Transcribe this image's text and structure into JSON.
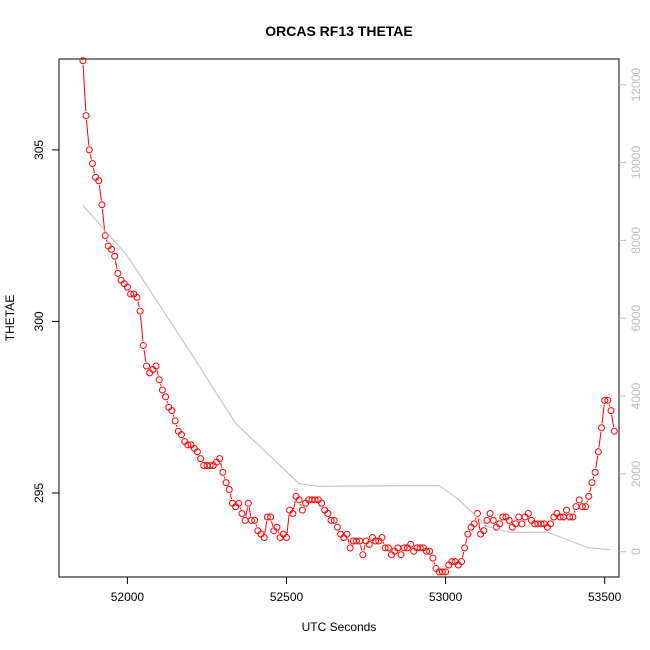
{
  "chart_data": {
    "type": "line",
    "title": "ORCAS RF13 THETAE",
    "xlabel": "UTC Seconds",
    "ylabel": "THETAE",
    "xlim": [
      51785,
      53545
    ],
    "ylim": [
      292.55,
      307.65
    ],
    "x_ticks": [
      52000,
      52500,
      53000,
      53500
    ],
    "y_ticks": [
      295,
      300,
      305
    ],
    "secondary_ylim": [
      -650,
      12660
    ],
    "secondary_ticks": [
      0,
      2000,
      4000,
      6000,
      8000,
      10000,
      12000
    ],
    "grid": false,
    "series": [
      {
        "color": "#ff0000",
        "style": "points-and-lines",
        "points": [
          [
            51860,
            307.6
          ],
          [
            51870,
            306.0
          ],
          [
            51880,
            305.0
          ],
          [
            51890,
            304.6
          ],
          [
            51900,
            304.2
          ],
          [
            51910,
            304.1
          ],
          [
            51920,
            303.4
          ],
          [
            51930,
            302.5
          ],
          [
            51940,
            302.2
          ],
          [
            51950,
            302.1
          ],
          [
            51960,
            301.9
          ],
          [
            51970,
            301.4
          ],
          [
            51980,
            301.2
          ],
          [
            51990,
            301.1
          ],
          [
            52000,
            301.0
          ],
          [
            52010,
            300.8
          ],
          [
            52020,
            300.8
          ],
          [
            52030,
            300.7
          ],
          [
            52040,
            300.3
          ],
          [
            52050,
            299.3
          ],
          [
            52060,
            298.7
          ],
          [
            52070,
            298.5
          ],
          [
            52080,
            298.6
          ],
          [
            52090,
            298.7
          ],
          [
            52100,
            298.3
          ],
          [
            52110,
            298.0
          ],
          [
            52120,
            297.8
          ],
          [
            52130,
            297.5
          ],
          [
            52140,
            297.4
          ],
          [
            52150,
            297.1
          ],
          [
            52160,
            296.8
          ],
          [
            52170,
            296.7
          ],
          [
            52180,
            296.5
          ],
          [
            52190,
            296.4
          ],
          [
            52200,
            296.4
          ],
          [
            52210,
            296.3
          ],
          [
            52220,
            296.2
          ],
          [
            52230,
            296.0
          ],
          [
            52240,
            295.8
          ],
          [
            52250,
            295.8
          ],
          [
            52260,
            295.8
          ],
          [
            52270,
            295.8
          ],
          [
            52280,
            295.9
          ],
          [
            52290,
            296.0
          ],
          [
            52300,
            295.6
          ],
          [
            52310,
            295.3
          ],
          [
            52320,
            295.1
          ],
          [
            52330,
            294.7
          ],
          [
            52340,
            294.6
          ],
          [
            52350,
            294.7
          ],
          [
            52360,
            294.4
          ],
          [
            52370,
            294.2
          ],
          [
            52380,
            294.7
          ],
          [
            52390,
            294.2
          ],
          [
            52400,
            294.2
          ],
          [
            52410,
            293.9
          ],
          [
            52420,
            293.8
          ],
          [
            52430,
            293.7
          ],
          [
            52440,
            294.3
          ],
          [
            52450,
            294.3
          ],
          [
            52460,
            293.9
          ],
          [
            52470,
            294.0
          ],
          [
            52480,
            293.7
          ],
          [
            52490,
            293.8
          ],
          [
            52500,
            293.7
          ],
          [
            52510,
            294.5
          ],
          [
            52520,
            294.4
          ],
          [
            52530,
            294.9
          ],
          [
            52540,
            294.8
          ],
          [
            52550,
            294.5
          ],
          [
            52560,
            294.7
          ],
          [
            52570,
            294.8
          ],
          [
            52580,
            294.8
          ],
          [
            52590,
            294.8
          ],
          [
            52600,
            294.8
          ],
          [
            52610,
            294.7
          ],
          [
            52620,
            294.5
          ],
          [
            52630,
            294.4
          ],
          [
            52640,
            294.2
          ],
          [
            52650,
            294.2
          ],
          [
            52660,
            294.0
          ],
          [
            52670,
            293.8
          ],
          [
            52680,
            293.7
          ],
          [
            52690,
            293.8
          ],
          [
            52700,
            293.4
          ],
          [
            52710,
            293.6
          ],
          [
            52720,
            293.6
          ],
          [
            52730,
            293.6
          ],
          [
            52740,
            293.2
          ],
          [
            52750,
            293.6
          ],
          [
            52760,
            293.5
          ],
          [
            52770,
            293.7
          ],
          [
            52780,
            293.6
          ],
          [
            52790,
            293.6
          ],
          [
            52800,
            293.7
          ],
          [
            52810,
            293.4
          ],
          [
            52820,
            293.4
          ],
          [
            52830,
            293.2
          ],
          [
            52840,
            293.3
          ],
          [
            52850,
            293.4
          ],
          [
            52860,
            293.2
          ],
          [
            52870,
            293.4
          ],
          [
            52880,
            293.4
          ],
          [
            52890,
            293.5
          ],
          [
            52900,
            293.3
          ],
          [
            52910,
            293.4
          ],
          [
            52920,
            293.4
          ],
          [
            52930,
            293.4
          ],
          [
            52940,
            293.3
          ],
          [
            52950,
            293.3
          ],
          [
            52960,
            293.1
          ],
          [
            52970,
            292.8
          ],
          [
            52980,
            292.7
          ],
          [
            52990,
            292.7
          ],
          [
            53000,
            292.7
          ],
          [
            53010,
            292.9
          ],
          [
            53020,
            293.0
          ],
          [
            53030,
            293.0
          ],
          [
            53040,
            292.9
          ],
          [
            53050,
            293.0
          ],
          [
            53060,
            293.4
          ],
          [
            53070,
            293.8
          ],
          [
            53080,
            294.0
          ],
          [
            53090,
            294.1
          ],
          [
            53100,
            294.4
          ],
          [
            53110,
            293.8
          ],
          [
            53120,
            293.9
          ],
          [
            53130,
            294.2
          ],
          [
            53140,
            294.4
          ],
          [
            53150,
            294.2
          ],
          [
            53160,
            294.0
          ],
          [
            53170,
            294.1
          ],
          [
            53180,
            294.3
          ],
          [
            53190,
            294.3
          ],
          [
            53200,
            294.2
          ],
          [
            53210,
            294.0
          ],
          [
            53220,
            294.1
          ],
          [
            53230,
            294.3
          ],
          [
            53240,
            294.1
          ],
          [
            53250,
            294.3
          ],
          [
            53260,
            294.4
          ],
          [
            53270,
            294.2
          ],
          [
            53280,
            294.1
          ],
          [
            53290,
            294.1
          ],
          [
            53300,
            294.1
          ],
          [
            53310,
            294.1
          ],
          [
            53320,
            294.0
          ],
          [
            53330,
            294.1
          ],
          [
            53340,
            294.3
          ],
          [
            53350,
            294.4
          ],
          [
            53360,
            294.3
          ],
          [
            53370,
            294.3
          ],
          [
            53380,
            294.5
          ],
          [
            53390,
            294.3
          ],
          [
            53400,
            294.3
          ],
          [
            53410,
            294.6
          ],
          [
            53420,
            294.8
          ],
          [
            53430,
            294.6
          ],
          [
            53440,
            294.6
          ],
          [
            53450,
            294.9
          ],
          [
            53460,
            295.3
          ],
          [
            53470,
            295.6
          ],
          [
            53480,
            296.2
          ],
          [
            53490,
            296.9
          ],
          [
            53500,
            297.7
          ],
          [
            53510,
            297.7
          ],
          [
            53520,
            297.4
          ],
          [
            53530,
            296.8
          ]
        ]
      },
      {
        "color": "#bdbdbd",
        "style": "line",
        "axis": "secondary",
        "points": [
          [
            51860,
            8900
          ],
          [
            52000,
            7600
          ],
          [
            52200,
            5100
          ],
          [
            52340,
            3300
          ],
          [
            52430,
            2600
          ],
          [
            52540,
            1750
          ],
          [
            52600,
            1680
          ],
          [
            52980,
            1700
          ],
          [
            53040,
            1350
          ],
          [
            53130,
            650
          ],
          [
            53200,
            500
          ],
          [
            53320,
            500
          ],
          [
            53450,
            100
          ],
          [
            53520,
            50
          ]
        ]
      }
    ]
  }
}
